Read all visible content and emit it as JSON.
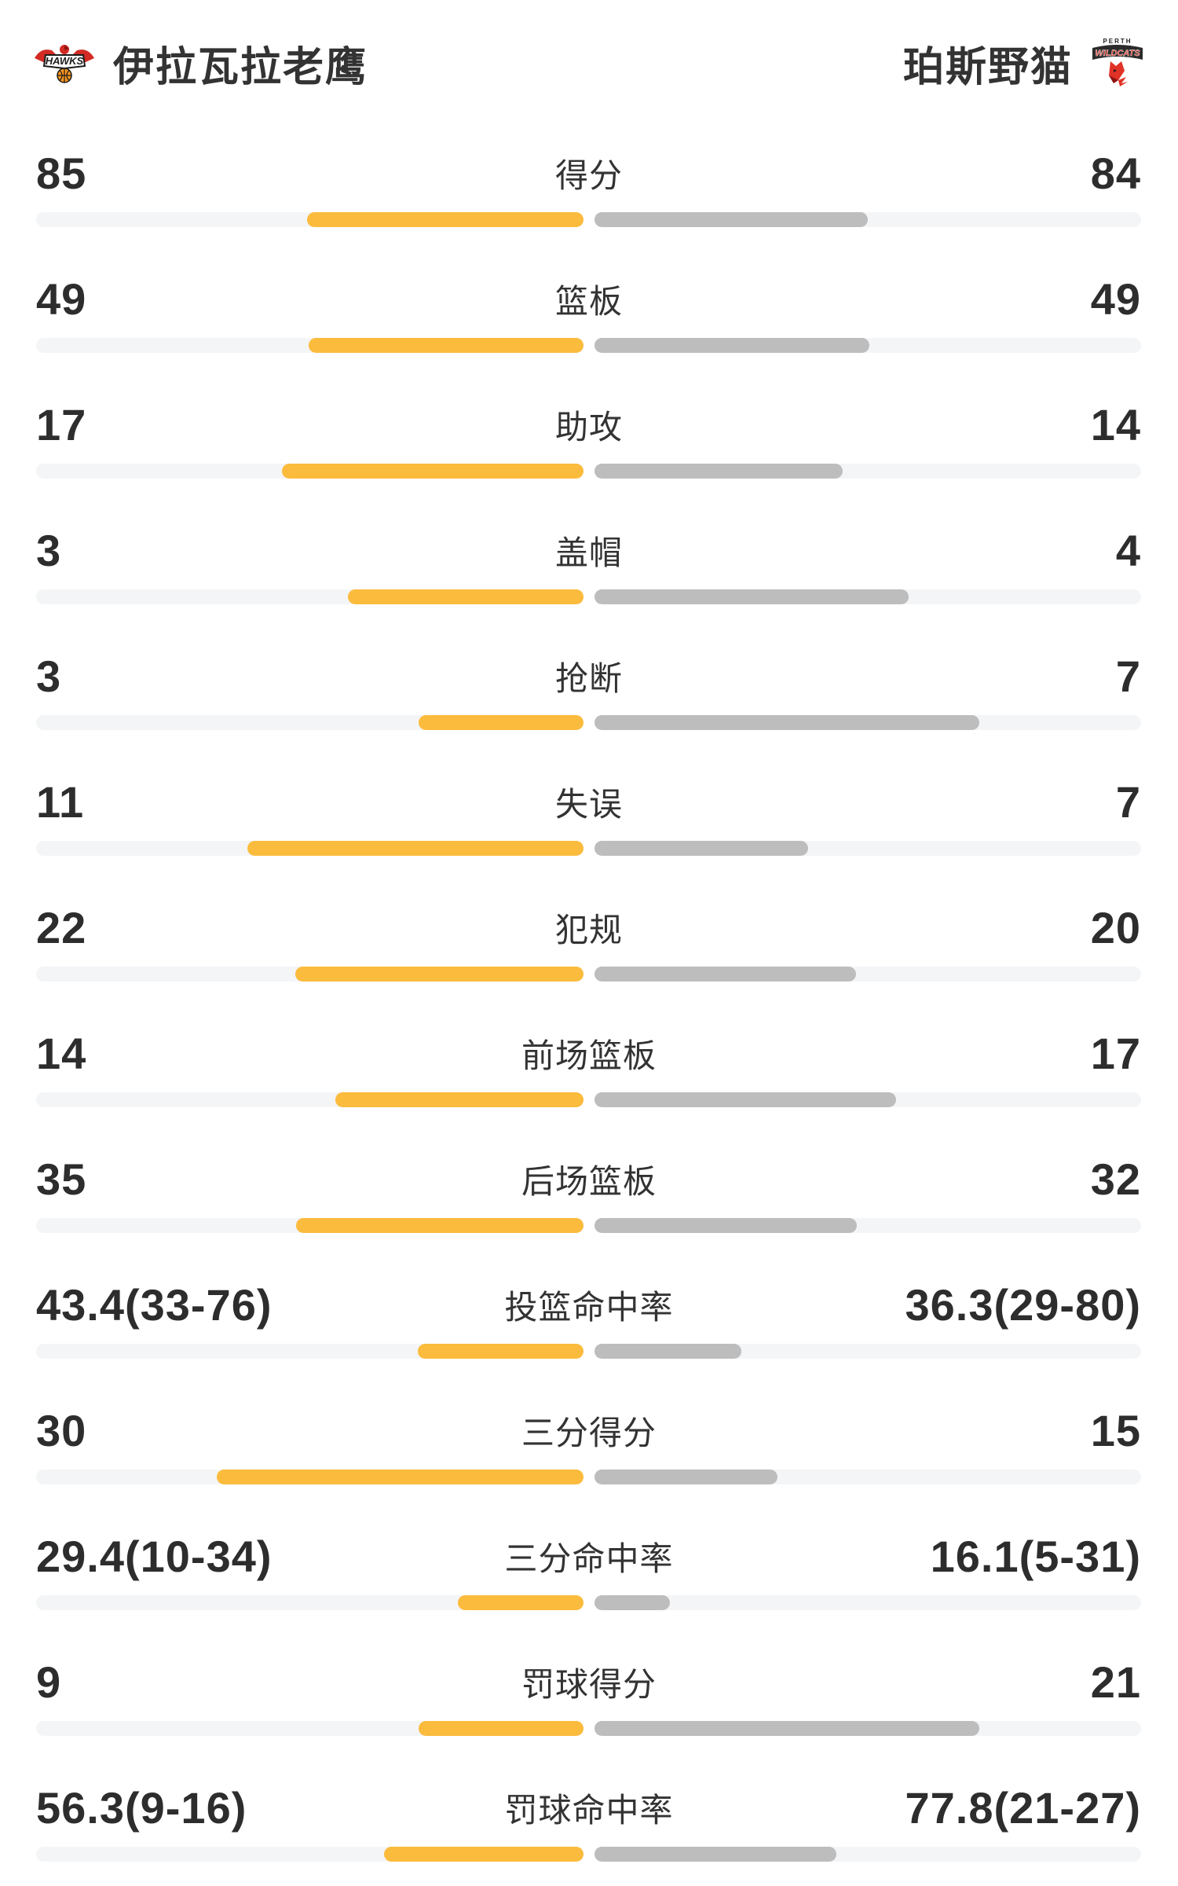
{
  "header": {
    "home": {
      "name": "伊拉瓦拉老鹰",
      "logo_text": "HAWKS"
    },
    "away": {
      "name": "珀斯野猫",
      "logo_text_top": "PERTH",
      "logo_text": "WILDCATS"
    }
  },
  "colors": {
    "home_bar": "#FBBB3C",
    "away_bar": "#BDBDBD",
    "track": "#F4F5F7",
    "value_text": "#2D2D2D",
    "label_text": "#333333",
    "logo_red": "#E03226"
  },
  "stats": [
    {
      "label": "得分",
      "home": "85",
      "away": "84",
      "home_bar": 352,
      "away_bar": 348
    },
    {
      "label": "篮板",
      "home": "49",
      "away": "49",
      "home_bar": 350,
      "away_bar": 350
    },
    {
      "label": "助攻",
      "home": "17",
      "away": "14",
      "home_bar": 384,
      "away_bar": 316
    },
    {
      "label": "盖帽",
      "home": "3",
      "away": "4",
      "home_bar": 300,
      "away_bar": 400
    },
    {
      "label": "抢断",
      "home": "3",
      "away": "7",
      "home_bar": 210,
      "away_bar": 490
    },
    {
      "label": "失误",
      "home": "11",
      "away": "7",
      "home_bar": 428,
      "away_bar": 272
    },
    {
      "label": "犯规",
      "home": "22",
      "away": "20",
      "home_bar": 367,
      "away_bar": 333
    },
    {
      "label": "前场篮板",
      "home": "14",
      "away": "17",
      "home_bar": 316,
      "away_bar": 384
    },
    {
      "label": "后场篮板",
      "home": "35",
      "away": "32",
      "home_bar": 366,
      "away_bar": 334
    },
    {
      "label": "投篮命中率",
      "home": "43.4(33-76)",
      "away": "36.3(29-80)",
      "home_bar": 211,
      "away_bar": 187
    },
    {
      "label": "三分得分",
      "home": "30",
      "away": "15",
      "home_bar": 467,
      "away_bar": 233
    },
    {
      "label": "三分命中率",
      "home": "29.4(10-34)",
      "away": "16.1(5-31)",
      "home_bar": 160,
      "away_bar": 96
    },
    {
      "label": "罚球得分",
      "home": "9",
      "away": "21",
      "home_bar": 210,
      "away_bar": 490
    },
    {
      "label": "罚球命中率",
      "home": "56.3(9-16)",
      "away": "77.8(21-27)",
      "home_bar": 254,
      "away_bar": 308
    }
  ],
  "chart_data": {
    "type": "bar",
    "orientation": "horizontal-paired",
    "title": "伊拉瓦拉老鹰 vs 珀斯野猫",
    "categories": [
      "得分",
      "篮板",
      "助攻",
      "盖帽",
      "抢断",
      "失误",
      "犯规",
      "前场篮板",
      "后场篮板",
      "投篮命中率",
      "三分得分",
      "三分命中率",
      "罚球得分",
      "罚球命中率"
    ],
    "series": [
      {
        "name": "伊拉瓦拉老鹰",
        "color": "#FBBB3C",
        "values": [
          85,
          49,
          17,
          3,
          3,
          11,
          22,
          14,
          35,
          43.4,
          30,
          29.4,
          9,
          56.3
        ],
        "labels": [
          "85",
          "49",
          "17",
          "3",
          "3",
          "11",
          "22",
          "14",
          "35",
          "43.4(33-76)",
          "30",
          "29.4(10-34)",
          "9",
          "56.3(9-16)"
        ]
      },
      {
        "name": "珀斯野猫",
        "color": "#BDBDBD",
        "values": [
          84,
          49,
          14,
          4,
          7,
          7,
          20,
          17,
          32,
          36.3,
          15,
          16.1,
          21,
          77.8
        ],
        "labels": [
          "84",
          "49",
          "14",
          "4",
          "7",
          "7",
          "20",
          "17",
          "32",
          "36.3(29-80)",
          "15",
          "16.1(5-31)",
          "21",
          "77.8(21-27)"
        ]
      }
    ],
    "legend_position": "top",
    "grid": false
  }
}
